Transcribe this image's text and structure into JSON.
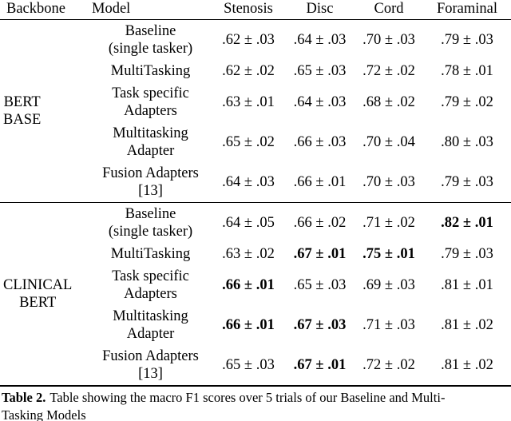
{
  "colors": {
    "text": "#000000",
    "background": "#ffffff",
    "rule": "#000000"
  },
  "table": {
    "headers": [
      "Backbone",
      "Model",
      "Stenosis",
      "Disc",
      "Cord",
      "Foraminal"
    ],
    "groups": [
      {
        "backbone": "BERT\nBASE",
        "rows": [
          {
            "model": "Baseline\n(single tasker)",
            "values": [
              {
                "text": ".62 ± .03",
                "bold": false
              },
              {
                "text": ".64 ± .03",
                "bold": false
              },
              {
                "text": ".70 ± .03",
                "bold": false
              },
              {
                "text": ".79 ± .03",
                "bold": false
              }
            ]
          },
          {
            "model": "MultiTasking",
            "values": [
              {
                "text": ".62 ± .02",
                "bold": false
              },
              {
                "text": ".65 ± .03",
                "bold": false
              },
              {
                "text": ".72 ± .02",
                "bold": false
              },
              {
                "text": ".78 ± .01",
                "bold": false
              }
            ]
          },
          {
            "model": "Task specific\nAdapters",
            "values": [
              {
                "text": ".63 ± .01",
                "bold": false
              },
              {
                "text": ".64 ± .03",
                "bold": false
              },
              {
                "text": ".68 ± .02",
                "bold": false
              },
              {
                "text": ".79 ± .02",
                "bold": false
              }
            ]
          },
          {
            "model": "Multitasking\nAdapter",
            "values": [
              {
                "text": ".65 ± .02",
                "bold": false
              },
              {
                "text": ".66 ± .03",
                "bold": false
              },
              {
                "text": ".70 ± .04",
                "bold": false
              },
              {
                "text": ".80 ± .03",
                "bold": false
              }
            ]
          },
          {
            "model": "Fusion Adapters\n[13]",
            "values": [
              {
                "text": ".64 ± .03",
                "bold": false
              },
              {
                "text": ".66 ± .01",
                "bold": false
              },
              {
                "text": ".70 ± .03",
                "bold": false
              },
              {
                "text": ".79 ± .03",
                "bold": false
              }
            ]
          }
        ]
      },
      {
        "backbone": "CLINICAL\nBERT",
        "rows": [
          {
            "model": "Baseline\n(single tasker)",
            "values": [
              {
                "text": ".64 ± .05",
                "bold": false
              },
              {
                "text": ".66 ± .02",
                "bold": false
              },
              {
                "text": ".71 ± .02",
                "bold": false
              },
              {
                "text": ".82 ± .01",
                "bold": true
              }
            ]
          },
          {
            "model": "MultiTasking",
            "values": [
              {
                "text": ".63 ± .02",
                "bold": false
              },
              {
                "text": ".67 ± .01",
                "bold": true
              },
              {
                "text": ".75 ± .01",
                "bold": true
              },
              {
                "text": ".79 ± .03",
                "bold": false
              }
            ]
          },
          {
            "model": "Task specific\nAdapters",
            "values": [
              {
                "text": ".66 ± .01",
                "bold": true
              },
              {
                "text": ".65 ± .03",
                "bold": false
              },
              {
                "text": ".69 ± .03",
                "bold": false
              },
              {
                "text": ".81 ± .01",
                "bold": false
              }
            ]
          },
          {
            "model": "Multitasking\nAdapter",
            "values": [
              {
                "text": ".66 ± .01",
                "bold": true
              },
              {
                "text": ".67 ± .03",
                "bold": true
              },
              {
                "text": ".71 ± .03",
                "bold": false
              },
              {
                "text": ".81 ± .02",
                "bold": false
              }
            ]
          },
          {
            "model": "Fusion Adapters\n[13]",
            "values": [
              {
                "text": ".65 ± .03",
                "bold": false
              },
              {
                "text": ".67 ± .01",
                "bold": true
              },
              {
                "text": ".72 ± .02",
                "bold": false
              },
              {
                "text": ".81 ± .02",
                "bold": false
              }
            ]
          }
        ]
      }
    ]
  },
  "caption": {
    "label": "Table 2.",
    "text": "Table showing the macro F1 scores over 5 trials of our Baseline and Multi-\nTasking Models"
  }
}
